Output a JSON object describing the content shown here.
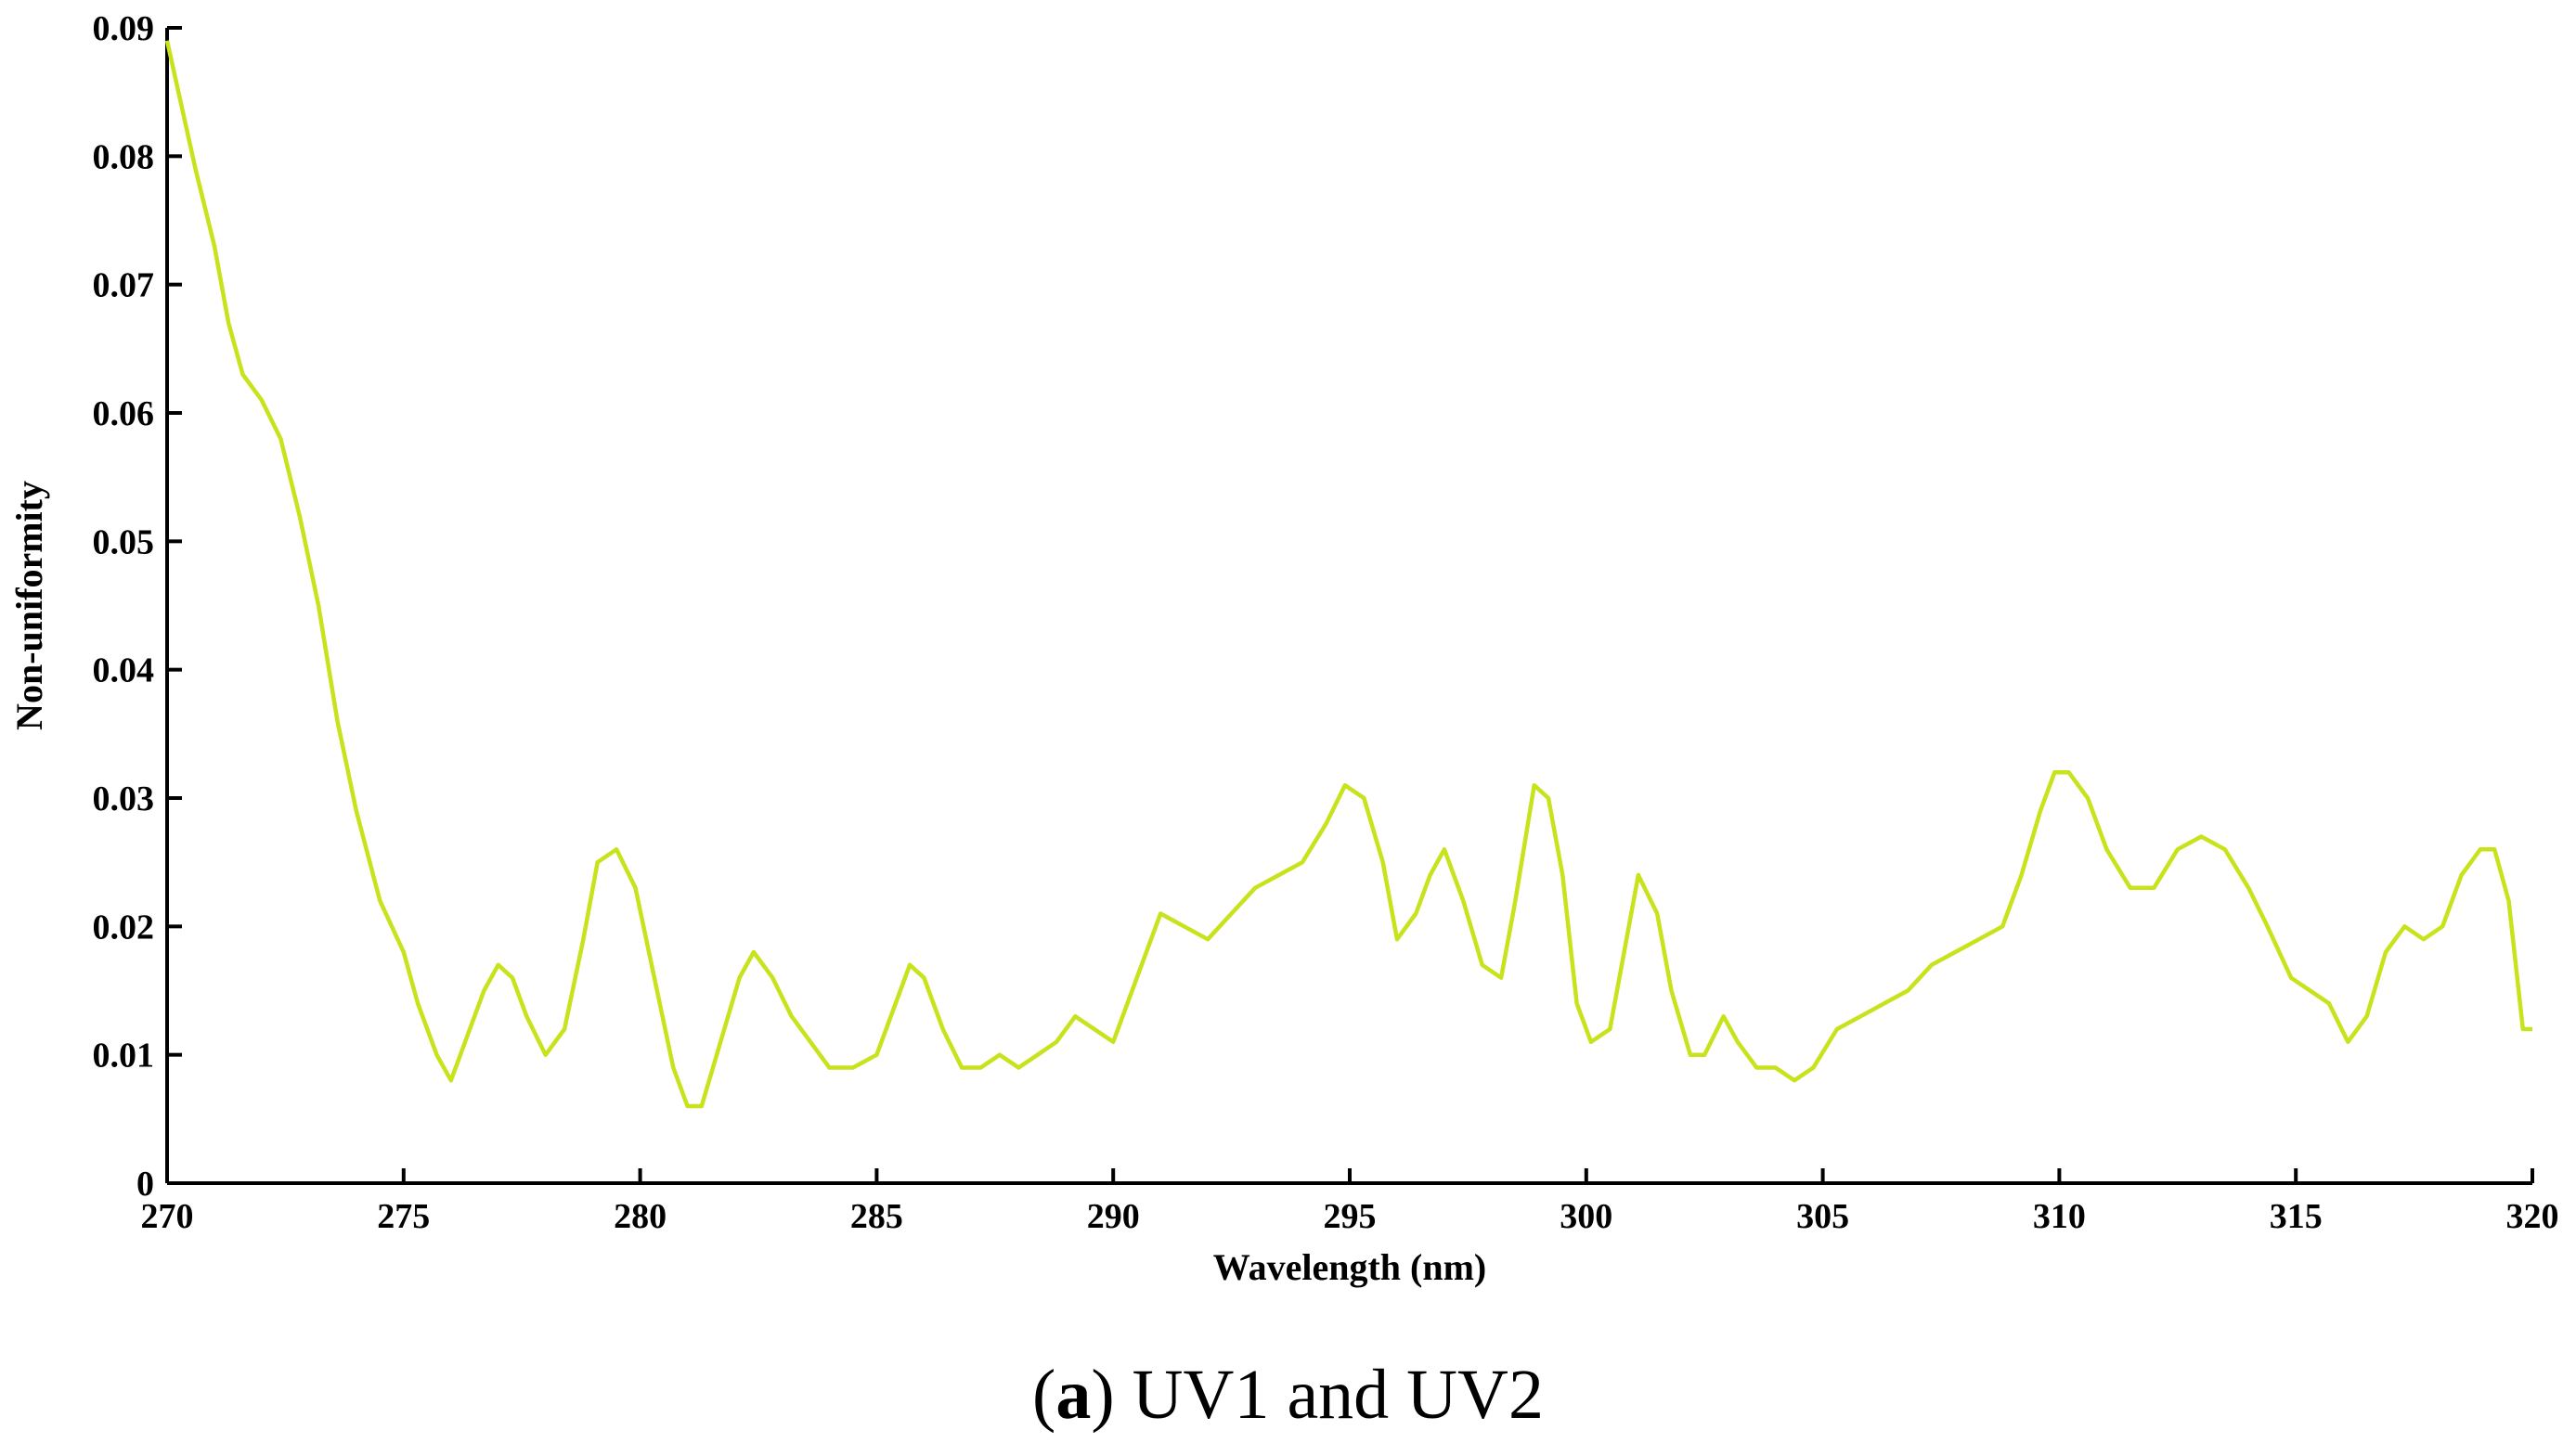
{
  "chart_data": {
    "type": "line",
    "title": "",
    "xlabel": "Wavelength (nm)",
    "ylabel": "Non-uniformity",
    "xlim": [
      270,
      320
    ],
    "ylim": [
      0,
      0.09
    ],
    "x_ticks": [
      "270",
      "275",
      "280",
      "285",
      "290",
      "295",
      "300",
      "305",
      "310",
      "315",
      "320"
    ],
    "y_ticks": [
      "0",
      "0.01",
      "0.02",
      "0.03",
      "0.04",
      "0.05",
      "0.06",
      "0.07",
      "0.08",
      "0.09"
    ],
    "grid": false,
    "line_color": "#c8e21c",
    "series": [
      {
        "x": [
          270.0,
          270.3,
          270.6,
          271.0,
          271.3,
          271.6,
          272.0,
          272.4,
          272.8,
          273.2,
          273.6,
          274.0,
          274.5,
          275.0,
          275.3,
          275.7,
          276.0,
          276.4,
          276.7,
          277.0,
          277.3,
          277.6,
          278.0,
          278.4,
          278.8,
          279.1,
          279.5,
          279.9,
          280.3,
          280.7,
          281.0,
          281.3,
          281.7,
          282.1,
          282.4,
          282.8,
          283.2,
          283.6,
          284.0,
          284.5,
          285.0,
          285.4,
          285.7,
          286.0,
          286.4,
          286.8,
          287.2,
          287.6,
          288.0,
          288.4,
          288.8,
          289.2,
          289.6,
          290.0,
          290.5,
          291.0,
          291.5,
          292.0,
          292.5,
          293.0,
          293.5,
          294.0,
          294.5,
          294.9,
          295.3,
          295.7,
          296.0,
          296.4,
          296.7,
          297.0,
          297.4,
          297.8,
          298.2,
          298.5,
          298.9,
          299.2,
          299.5,
          299.8,
          300.1,
          300.5,
          300.8,
          301.1,
          301.5,
          301.8,
          302.2,
          302.5,
          302.9,
          303.2,
          303.6,
          304.0,
          304.4,
          304.8,
          305.3,
          305.8,
          306.3,
          306.8,
          307.3,
          307.8,
          308.3,
          308.8,
          309.2,
          309.6,
          309.9,
          310.2,
          310.6,
          311.0,
          311.5,
          312.0,
          312.5,
          313.0,
          313.5,
          314.0,
          314.4,
          314.9,
          315.3,
          315.7,
          316.1,
          316.5,
          316.9,
          317.3,
          317.7,
          318.1,
          318.5,
          318.9,
          319.2,
          319.5,
          319.8,
          320.0
        ],
        "y": [
          0.089,
          0.084,
          0.079,
          0.073,
          0.067,
          0.063,
          0.061,
          0.058,
          0.052,
          0.045,
          0.036,
          0.029,
          0.022,
          0.018,
          0.014,
          0.01,
          0.008,
          0.012,
          0.015,
          0.017,
          0.016,
          0.013,
          0.01,
          0.012,
          0.019,
          0.025,
          0.026,
          0.023,
          0.016,
          0.009,
          0.006,
          0.006,
          0.011,
          0.016,
          0.018,
          0.016,
          0.013,
          0.011,
          0.009,
          0.009,
          0.01,
          0.014,
          0.017,
          0.016,
          0.012,
          0.009,
          0.009,
          0.01,
          0.009,
          0.01,
          0.011,
          0.013,
          0.012,
          0.011,
          0.016,
          0.021,
          0.02,
          0.019,
          0.021,
          0.023,
          0.024,
          0.025,
          0.028,
          0.031,
          0.03,
          0.025,
          0.019,
          0.021,
          0.024,
          0.026,
          0.022,
          0.017,
          0.016,
          0.022,
          0.031,
          0.03,
          0.024,
          0.014,
          0.011,
          0.012,
          0.018,
          0.024,
          0.021,
          0.015,
          0.01,
          0.01,
          0.013,
          0.011,
          0.009,
          0.009,
          0.008,
          0.009,
          0.012,
          0.013,
          0.014,
          0.015,
          0.017,
          0.018,
          0.019,
          0.02,
          0.024,
          0.029,
          0.032,
          0.032,
          0.03,
          0.026,
          0.023,
          0.023,
          0.026,
          0.027,
          0.026,
          0.023,
          0.02,
          0.016,
          0.015,
          0.014,
          0.011,
          0.013,
          0.018,
          0.02,
          0.019,
          0.02,
          0.024,
          0.026,
          0.026,
          0.022,
          0.012,
          0.012
        ]
      }
    ]
  },
  "caption": {
    "letter": "a",
    "open": "(",
    "close": ")",
    "text": " UV1 and UV2"
  }
}
